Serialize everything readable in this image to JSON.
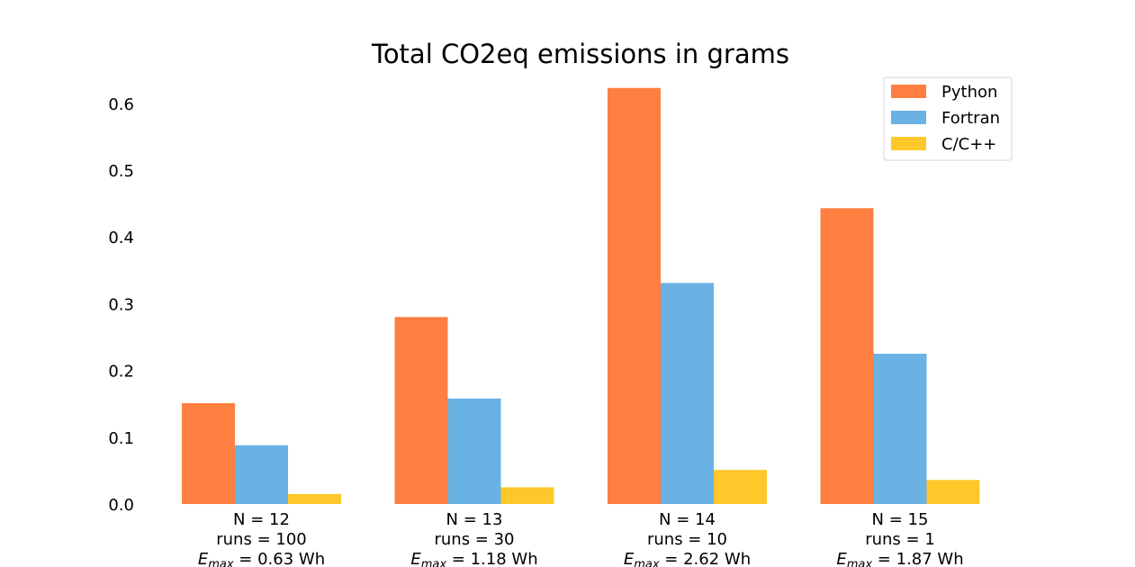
{
  "chart_data": {
    "type": "bar",
    "title": "Total CO2eq emissions in grams",
    "xlabel": "",
    "ylabel": "",
    "ylim": [
      0,
      0.64
    ],
    "yticks": [
      "0.0",
      "0.1",
      "0.2",
      "0.3",
      "0.4",
      "0.5",
      "0.6"
    ],
    "ytick_values": [
      0.0,
      0.1,
      0.2,
      0.3,
      0.4,
      0.5,
      0.6
    ],
    "grid": false,
    "legend_position": "top-right",
    "categories": [
      {
        "line1": "N = 12",
        "line2": "runs = 100",
        "emax_prefix": "E",
        "emax_sub": "max",
        "emax_suffix": " = 0.63 Wh"
      },
      {
        "line1": "N = 13",
        "line2": "runs = 30",
        "emax_prefix": "E",
        "emax_sub": "max",
        "emax_suffix": " = 1.18 Wh"
      },
      {
        "line1": "N = 14",
        "line2": "runs = 10",
        "emax_prefix": "E",
        "emax_sub": "max",
        "emax_suffix": " = 2.62 Wh"
      },
      {
        "line1": "N = 15",
        "line2": "runs = 1",
        "emax_prefix": "E",
        "emax_sub": "max",
        "emax_suffix": " = 1.87 Wh"
      }
    ],
    "series": [
      {
        "name": "Python",
        "color": "#ff7f41",
        "values": [
          0.151,
          0.28,
          0.623,
          0.443
        ]
      },
      {
        "name": "Fortran",
        "color": "#6ab2e4",
        "values": [
          0.088,
          0.158,
          0.331,
          0.225
        ]
      },
      {
        "name": "C/C++",
        "color": "#ffc82a",
        "values": [
          0.015,
          0.025,
          0.051,
          0.036
        ]
      }
    ]
  }
}
